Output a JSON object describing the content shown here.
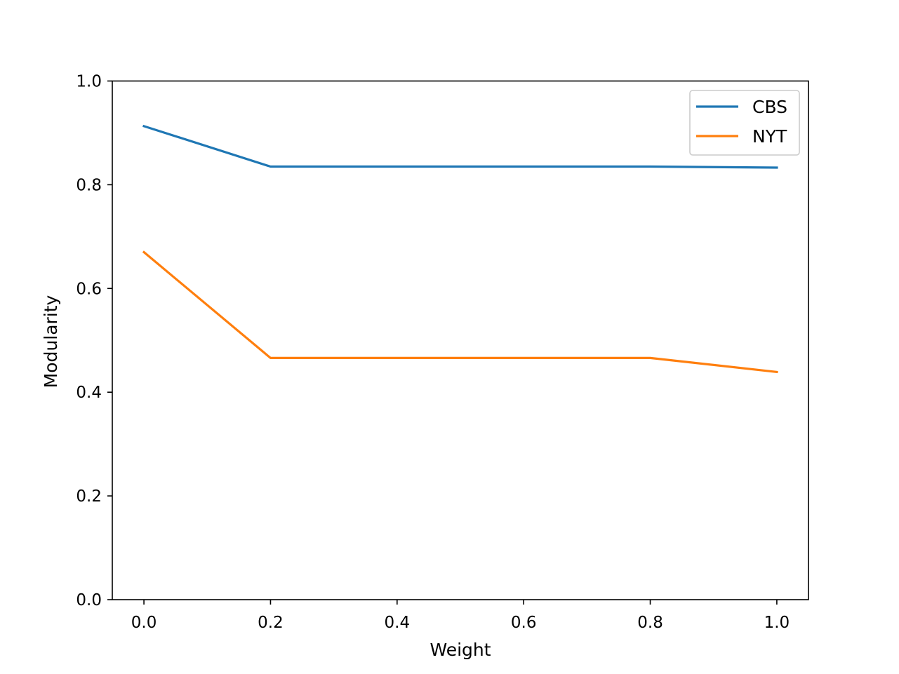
{
  "chart_data": {
    "type": "line",
    "title": "",
    "xlabel": "Weight",
    "ylabel": "Modularity",
    "xlim": [
      -0.05,
      1.05
    ],
    "ylim": [
      0.0,
      1.0
    ],
    "xticks": [
      0.0,
      0.2,
      0.4,
      0.6,
      0.8,
      1.0
    ],
    "xtick_labels": [
      "0.0",
      "0.2",
      "0.4",
      "0.6",
      "0.8",
      "1.0"
    ],
    "yticks": [
      0.0,
      0.2,
      0.4,
      0.6,
      0.8,
      1.0
    ],
    "ytick_labels": [
      "0.0",
      "0.2",
      "0.4",
      "0.6",
      "0.8",
      "1.0"
    ],
    "grid": false,
    "legend_position": "top-right",
    "x": [
      0.0,
      0.2,
      0.4,
      0.6,
      0.8,
      1.0
    ],
    "series": [
      {
        "name": "CBS",
        "color": "#1f77b4",
        "values": [
          0.913,
          0.835,
          0.835,
          0.835,
          0.835,
          0.833
        ]
      },
      {
        "name": "NYT",
        "color": "#ff7f0e",
        "values": [
          0.67,
          0.466,
          0.466,
          0.466,
          0.466,
          0.439
        ]
      }
    ]
  }
}
